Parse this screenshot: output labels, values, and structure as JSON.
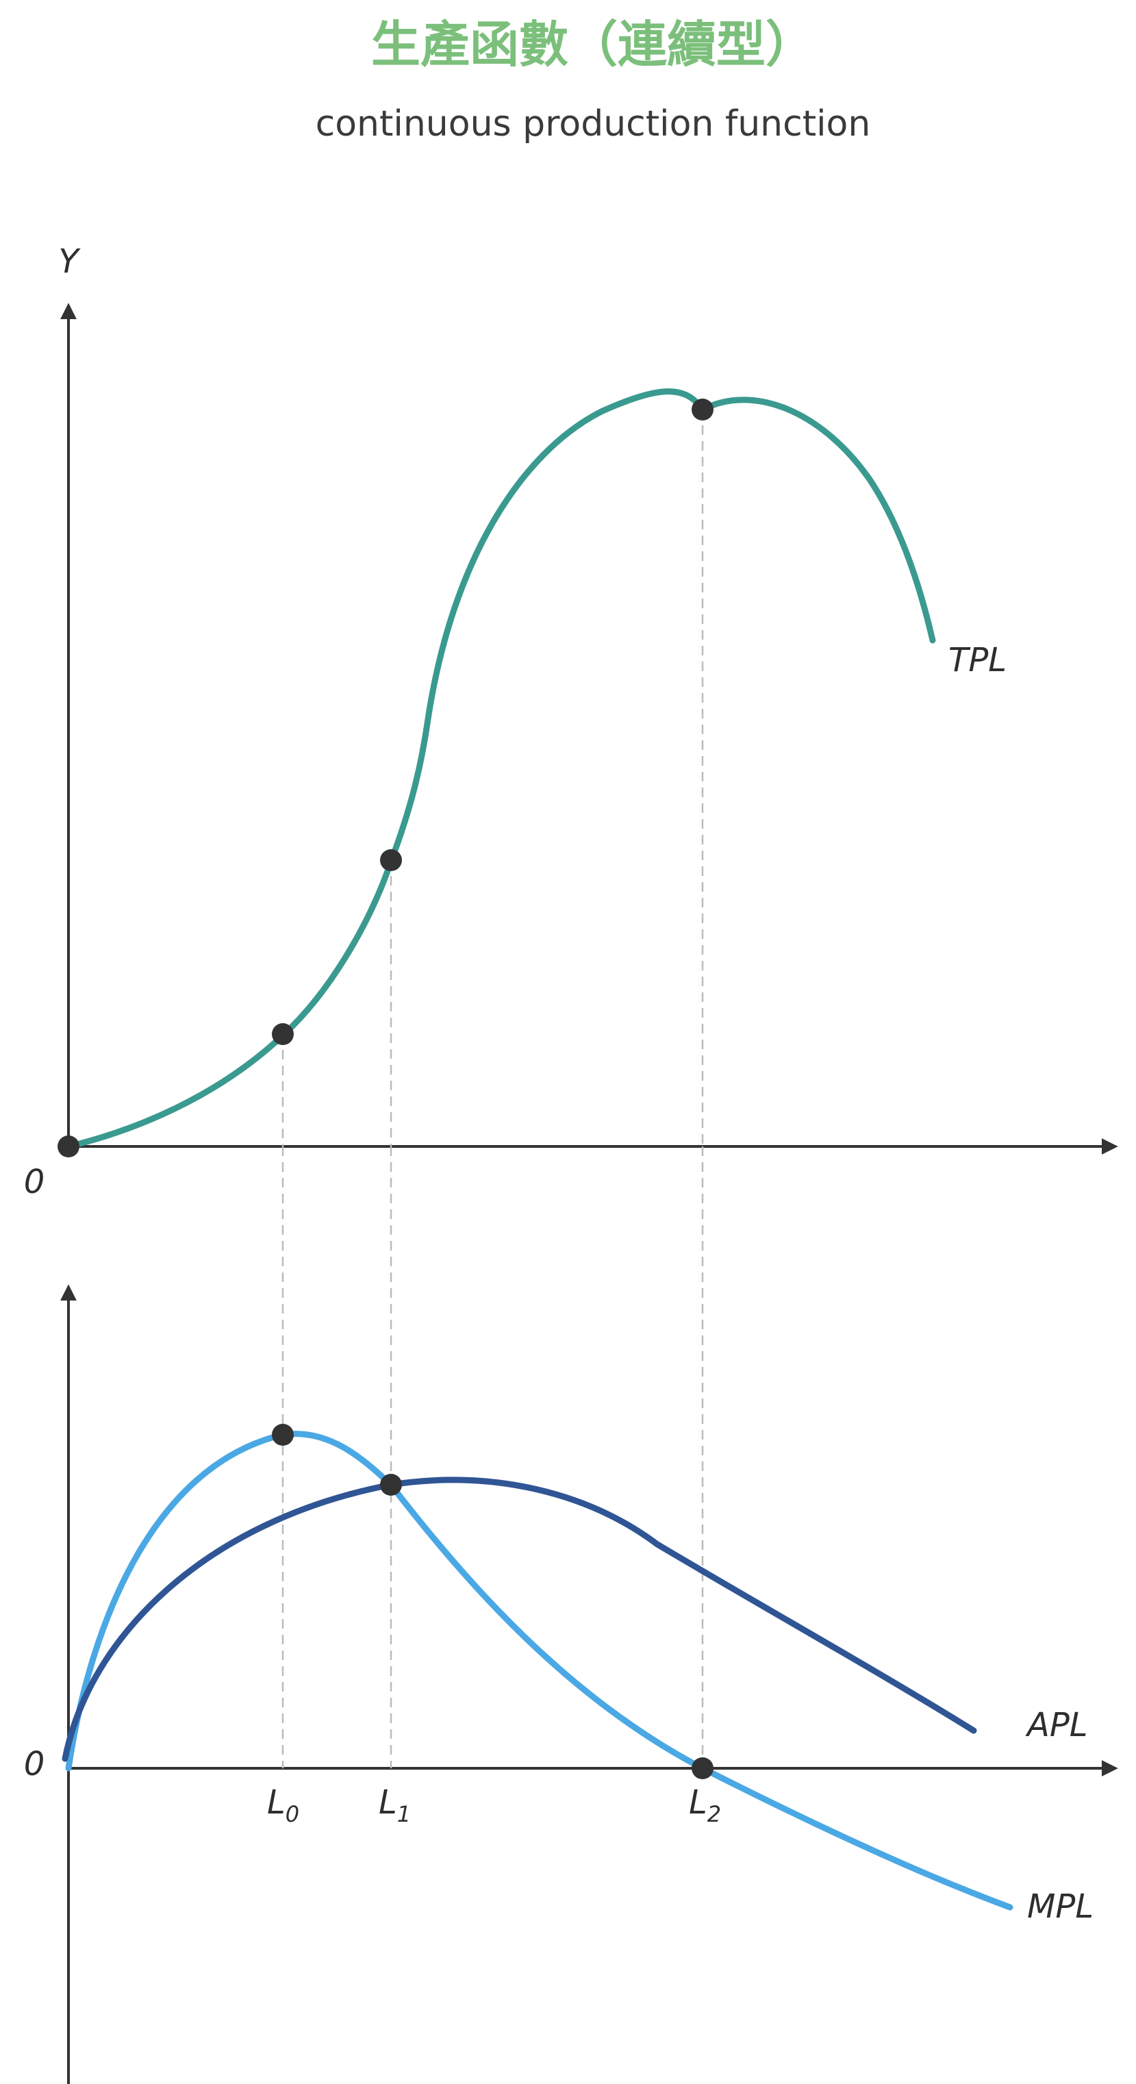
{
  "title": "生產函數（連續型）",
  "subtitle": "continuous production function",
  "axes": {
    "y_label": "Y",
    "origin_label": "0"
  },
  "curves": {
    "tpl": {
      "label": "TPL",
      "color": "#3a9a8f"
    },
    "apl": {
      "label": "APL",
      "color": "#2f5595"
    },
    "mpl": {
      "label": "MPL",
      "color": "#4aa8e4"
    }
  },
  "x_ticks": [
    {
      "base": "L",
      "sub": "0"
    },
    {
      "base": "L",
      "sub": "1"
    },
    {
      "base": "L",
      "sub": "2"
    }
  ],
  "colors": {
    "title": "#7bbf7b",
    "axis": "#333333",
    "guide": "#bbbbbb",
    "point": "#333333"
  }
}
